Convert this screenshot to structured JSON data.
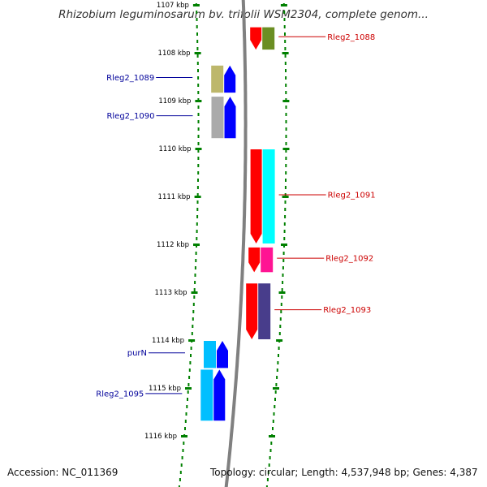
{
  "title": "Rhizobium leguminosarum bv. trifolii WSM2304, complete genom...",
  "footer": {
    "accession": "Accession: NC_011369",
    "summary": "Topology: circular; Length: 4,537,948 bp; Genes: 4,387"
  },
  "scale": {
    "unit": "kbp",
    "ticks": [
      {
        "kbp": 1107,
        "label": "1107 kbp"
      },
      {
        "kbp": 1108,
        "label": "1108 kbp"
      },
      {
        "kbp": 1109,
        "label": "1109 kbp"
      },
      {
        "kbp": 1110,
        "label": "1110 kbp"
      },
      {
        "kbp": 1111,
        "label": "1111 kbp"
      },
      {
        "kbp": 1112,
        "label": "1112 kbp"
      },
      {
        "kbp": 1113,
        "label": "1113 kbp"
      },
      {
        "kbp": 1114,
        "label": "1114 kbp"
      },
      {
        "kbp": 1115,
        "label": "1115 kbp"
      },
      {
        "kbp": 1116,
        "label": "1116 kbp"
      }
    ]
  },
  "genes": [
    {
      "label": "Rleg2_1088",
      "strand": "+",
      "start": 1107.45,
      "end": 1107.95,
      "color": "#ff0000",
      "hit_color": "#6b8e23"
    },
    {
      "label": "Rleg2_1089",
      "strand": "-",
      "start": 1108.25,
      "end": 1108.85,
      "color": "#0000ff",
      "hit_color": "#bdb76b"
    },
    {
      "label": "Rleg2_1090",
      "strand": "-",
      "start": 1108.9,
      "end": 1109.8,
      "color": "#0000ff",
      "hit_color": "#aaaaaa"
    },
    {
      "label": "Rleg2_1091",
      "strand": "+",
      "start": 1110.0,
      "end": 1112.0,
      "color": "#ff0000",
      "hit_color": "#00ffff"
    },
    {
      "label": "Rleg2_1092",
      "strand": "+",
      "start": 1112.05,
      "end": 1112.6,
      "color": "#ff0000",
      "hit_color": "#ff1493"
    },
    {
      "label": "Rleg2_1093",
      "strand": "+",
      "start": 1112.8,
      "end": 1114.0,
      "color": "#ff0000",
      "hit_color": "#483d8b"
    },
    {
      "label": "purN",
      "strand": "-",
      "start": 1114.0,
      "end": 1114.6,
      "color": "#0000ff",
      "hit_color": "#00bfff"
    },
    {
      "label": "Rleg2_1095",
      "strand": "-",
      "start": 1114.6,
      "end": 1115.7,
      "color": "#0000ff",
      "hit_color": "#00bfff"
    }
  ],
  "colors": {
    "forward_label": "#cc0000",
    "reverse_label": "#00009a",
    "backbone": "#808080",
    "tick": "#008000"
  }
}
